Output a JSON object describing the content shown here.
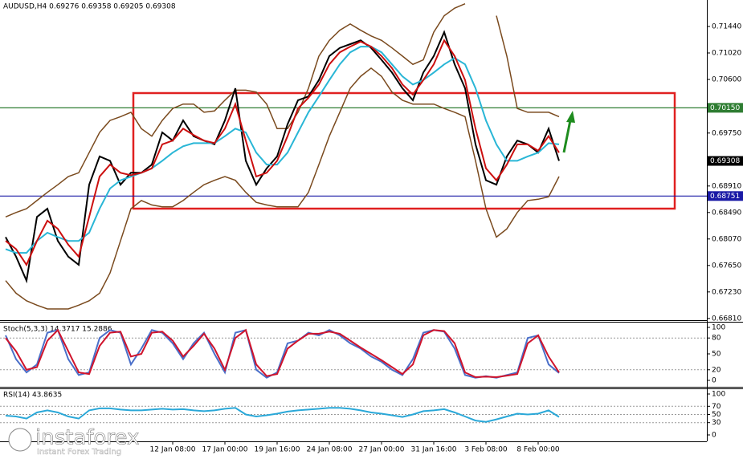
{
  "chart_data": [
    {
      "type": "line",
      "title": "AUDUSD,H4  0.69276 0.69358 0.69205 0.69308",
      "categories": [
        null,
        null,
        null,
        null,
        null,
        null,
        null,
        null,
        null,
        null,
        null,
        null,
        null,
        null,
        null,
        null,
        "12 Jan 08:00",
        null,
        null,
        null,
        null,
        "17 Jan 00:00",
        null,
        null,
        null,
        null,
        "19 Jan 16:00",
        null,
        null,
        null,
        null,
        "24 Jan 08:00",
        null,
        null,
        null,
        null,
        "27 Jan 00:00",
        null,
        null,
        null,
        null,
        "31 Jan 16:00",
        null,
        null,
        null,
        null,
        "3 Feb 08:00",
        null,
        null,
        null,
        null,
        "8 Feb 00:00",
        null,
        null
      ],
      "ylim": [
        0.66795,
        0.7186
      ],
      "yticks": [
        {
          "value": 0.7144,
          "label": "0.71440"
        },
        {
          "value": 0.7102,
          "label": "0.71020"
        },
        {
          "value": 0.706,
          "label": "0.70600"
        },
        {
          "value": 0.6975,
          "label": "0.69750"
        },
        {
          "value": 0.6891,
          "label": "0.68910"
        },
        {
          "value": 0.6849,
          "label": "0.68490"
        },
        {
          "value": 0.6807,
          "label": "0.68070"
        },
        {
          "value": 0.6765,
          "label": "0.67650"
        },
        {
          "value": 0.6723,
          "label": "0.67230"
        },
        {
          "value": 0.6681,
          "label": "0.66810"
        }
      ],
      "levels": [
        {
          "value": 0.7015,
          "label": "0.70150",
          "color": "#2e7d32",
          "line": true
        },
        {
          "value": 0.69308,
          "label": "0.69308",
          "color": "#000000",
          "line": false
        },
        {
          "value": 0.68751,
          "label": "0.68751",
          "color": "#1a1aa6",
          "line": true
        }
      ],
      "series": [
        {
          "color": "#7a4a1e",
          "values": [
            0.6842,
            0.6849,
            0.6855,
            0.6868,
            0.6881,
            0.6893,
            0.6906,
            0.6912,
            0.6944,
            0.6976,
            0.6995,
            0.7001,
            0.7008,
            0.6982,
            0.697,
            0.6995,
            0.7014,
            0.7021,
            0.7021,
            0.7008,
            0.701,
            0.7027,
            0.7043,
            0.7043,
            0.704,
            0.7021,
            0.6982,
            0.6982,
            0.7008,
            0.7046,
            0.7097,
            0.7122,
            0.7138,
            0.7148,
            0.7138,
            0.7129,
            0.7122,
            0.711,
            0.7097,
            0.7084,
            0.7091,
            0.7135,
            0.7161,
            0.7173,
            0.718,
            null,
            null,
            0.7161,
            0.7097,
            0.7014,
            0.7008,
            0.7008,
            0.7008,
            0.7001
          ]
        },
        {
          "color": "#7a4a1e",
          "values": [
            0.6741,
            0.6721,
            0.6709,
            0.6702,
            0.6696,
            0.6696,
            0.6696,
            0.6702,
            0.6709,
            0.6721,
            0.6753,
            0.6804,
            0.6855,
            0.6868,
            0.6861,
            0.6858,
            0.6858,
            0.6868,
            0.6881,
            0.6893,
            0.69,
            0.6906,
            0.69,
            0.6881,
            0.6865,
            0.6861,
            0.6858,
            0.6858,
            0.6858,
            0.6881,
            0.6925,
            0.697,
            0.7008,
            0.7046,
            0.7065,
            0.7078,
            0.7065,
            0.704,
            0.7027,
            0.7021,
            0.7021,
            0.7021,
            0.7014,
            0.7008,
            0.7001,
            0.6931,
            0.6855,
            0.681,
            0.6823,
            0.6849,
            0.6868,
            0.687,
            0.6874,
            0.6906
          ]
        },
        {
          "color": "#000000",
          "values": [
            0.681,
            0.6779,
            0.6741,
            0.6842,
            0.6855,
            0.6804,
            0.6779,
            0.6766,
            0.6893,
            0.6938,
            0.6931,
            0.6893,
            0.6912,
            0.6912,
            0.6925,
            0.6976,
            0.6963,
            0.6995,
            0.697,
            0.6963,
            0.6957,
            0.6995,
            0.7046,
            0.6931,
            0.6893,
            0.6919,
            0.6938,
            0.6989,
            0.7027,
            0.7033,
            0.7059,
            0.7097,
            0.711,
            0.7116,
            0.7122,
            0.711,
            0.7091,
            0.7071,
            0.7046,
            0.7027,
            0.7071,
            0.7097,
            0.7135,
            0.7084,
            0.7046,
            0.6957,
            0.69,
            0.6893,
            0.6938,
            0.6963,
            0.6957,
            0.6944,
            0.6982,
            0.6931
          ]
        },
        {
          "color": "#29b6d6",
          "values": [
            0.6791,
            0.6785,
            0.6785,
            0.6804,
            0.6817,
            0.681,
            0.6804,
            0.6804,
            0.6817,
            0.6855,
            0.6887,
            0.69,
            0.6906,
            0.6912,
            0.6919,
            0.6931,
            0.6944,
            0.6954,
            0.6959,
            0.6959,
            0.6959,
            0.697,
            0.6982,
            0.6976,
            0.6944,
            0.6925,
            0.6925,
            0.6944,
            0.6976,
            0.7008,
            0.7033,
            0.7059,
            0.7084,
            0.7103,
            0.7112,
            0.7112,
            0.7103,
            0.7084,
            0.7065,
            0.7052,
            0.7059,
            0.7071,
            0.7084,
            0.7094,
            0.7084,
            0.7046,
            0.6995,
            0.6957,
            0.6931,
            0.6931,
            0.6938,
            0.6944,
            0.6959,
            0.6957
          ]
        },
        {
          "color": "#cc1010",
          "values": [
            0.6804,
            0.6791,
            0.6766,
            0.6804,
            0.6836,
            0.6823,
            0.6798,
            0.6779,
            0.6842,
            0.6906,
            0.6925,
            0.6912,
            0.6908,
            0.6912,
            0.6919,
            0.6957,
            0.6963,
            0.6982,
            0.6972,
            0.6963,
            0.6959,
            0.6982,
            0.7021,
            0.6963,
            0.6906,
            0.6912,
            0.6931,
            0.697,
            0.7014,
            0.7031,
            0.7052,
            0.7084,
            0.7103,
            0.7112,
            0.712,
            0.7112,
            0.7097,
            0.7078,
            0.7052,
            0.7036,
            0.7059,
            0.7084,
            0.7122,
            0.7097,
            0.7059,
            0.6982,
            0.6919,
            0.69,
            0.6925,
            0.6957,
            0.6957,
            0.6947,
            0.697,
            0.6944
          ]
        }
      ]
    },
    {
      "type": "line",
      "title": "Stoch(5,3,3) 14.3717 15.2886",
      "ylim": [
        0,
        100
      ],
      "yticks": [
        0,
        20,
        50,
        80,
        100
      ],
      "levels": [
        20,
        80
      ],
      "series": [
        {
          "color": "#4a6fc9",
          "values": [
            85,
            40,
            15,
            30,
            90,
            95,
            40,
            10,
            15,
            80,
            95,
            90,
            30,
            60,
            95,
            90,
            70,
            40,
            70,
            90,
            50,
            15,
            90,
            95,
            20,
            5,
            15,
            70,
            75,
            90,
            85,
            95,
            85,
            70,
            60,
            45,
            35,
            20,
            10,
            40,
            90,
            95,
            92,
            60,
            10,
            5,
            8,
            5,
            10,
            15,
            80,
            85,
            30,
            14
          ]
        },
        {
          "color": "#d0142c",
          "values": [
            80,
            55,
            20,
            25,
            75,
            95,
            55,
            15,
            12,
            65,
            90,
            92,
            45,
            50,
            90,
            92,
            75,
            45,
            65,
            88,
            60,
            20,
            80,
            95,
            30,
            8,
            12,
            60,
            75,
            88,
            88,
            92,
            88,
            75,
            62,
            50,
            38,
            25,
            12,
            30,
            85,
            95,
            93,
            70,
            15,
            6,
            7,
            6,
            9,
            12,
            70,
            85,
            45,
            15
          ]
        }
      ]
    },
    {
      "type": "line",
      "title": "RSI(14) 43.8635",
      "ylim": [
        0,
        100
      ],
      "yticks": [
        0,
        30,
        50,
        70,
        100
      ],
      "levels": [
        30,
        50,
        70
      ],
      "series": [
        {
          "color": "#2aa8d8",
          "values": [
            47,
            45,
            40,
            55,
            60,
            55,
            45,
            40,
            60,
            65,
            65,
            62,
            60,
            60,
            62,
            64,
            62,
            63,
            60,
            58,
            60,
            64,
            66,
            50,
            45,
            48,
            52,
            57,
            60,
            62,
            64,
            66,
            66,
            64,
            60,
            55,
            52,
            48,
            44,
            50,
            58,
            60,
            63,
            55,
            45,
            35,
            32,
            38,
            45,
            52,
            50,
            52,
            60,
            44
          ]
        }
      ]
    }
  ],
  "brand": {
    "name": "instaforex",
    "tagline": "Instant Forex Trading"
  }
}
